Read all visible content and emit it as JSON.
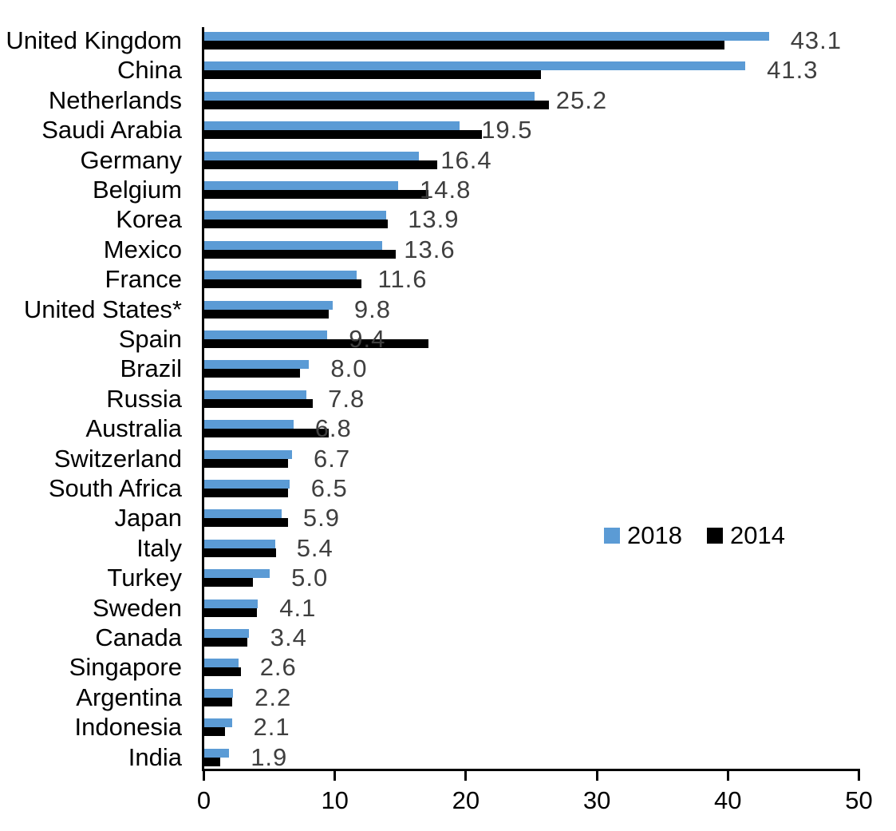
{
  "chart_data": {
    "type": "bar",
    "orientation": "horizontal",
    "title": "",
    "xlabel": "",
    "ylabel": "",
    "xlim": [
      0,
      50
    ],
    "x_ticks": [
      "0",
      "10",
      "20",
      "30",
      "40",
      "50"
    ],
    "grid": false,
    "legend_position": "middle-right",
    "categories": [
      "United Kingdom",
      "China",
      "Netherlands",
      "Saudi Arabia",
      "Germany",
      "Belgium",
      "Korea",
      "Mexico",
      "France",
      "United States*",
      "Spain",
      "Brazil",
      "Russia",
      "Australia",
      "Switzerland",
      "South Africa",
      "Japan",
      "Italy",
      "Turkey",
      "Sweden",
      "Canada",
      "Singapore",
      "Argentina",
      "Indonesia",
      "India"
    ],
    "series": [
      {
        "name": "2018",
        "color": "#5B9BD5",
        "values": [
          43.1,
          41.3,
          25.2,
          19.5,
          16.4,
          14.8,
          13.9,
          13.6,
          11.6,
          9.8,
          9.4,
          8.0,
          7.8,
          6.8,
          6.7,
          6.5,
          5.9,
          5.4,
          5.0,
          4.1,
          3.4,
          2.6,
          2.2,
          2.1,
          1.9
        ]
      },
      {
        "name": "2014",
        "color": "#000000",
        "values": [
          39.7,
          25.7,
          26.3,
          21.2,
          17.8,
          17.1,
          14.0,
          14.6,
          12.0,
          9.5,
          17.1,
          7.3,
          8.3,
          9.5,
          6.4,
          6.4,
          6.4,
          5.5,
          3.7,
          4.0,
          3.3,
          2.8,
          2.1,
          1.6,
          1.2
        ]
      }
    ],
    "data_labels": [
      "43.1",
      "41.3",
      "25.2",
      "19.5",
      "16.4",
      "14.8",
      "13.9",
      "13.6",
      "11.6",
      "9.8",
      "9.4",
      "8.0",
      "7.8",
      "6.8",
      "6.7",
      "6.5",
      "5.9",
      "5.4",
      "5.0",
      "4.1",
      "3.4",
      "2.6",
      "2.2",
      "2.1",
      "1.9"
    ],
    "data_label_series": "2018",
    "colors": {
      "bar_2018": "#5B9BD5",
      "bar_2014": "#000000",
      "value_label": "#3F3F3F",
      "axis": "#000000",
      "category_label": "#000000"
    },
    "legend": {
      "entries": [
        {
          "label": "2018",
          "color": "#5B9BD5"
        },
        {
          "label": "2014",
          "color": "#000000"
        }
      ]
    }
  }
}
